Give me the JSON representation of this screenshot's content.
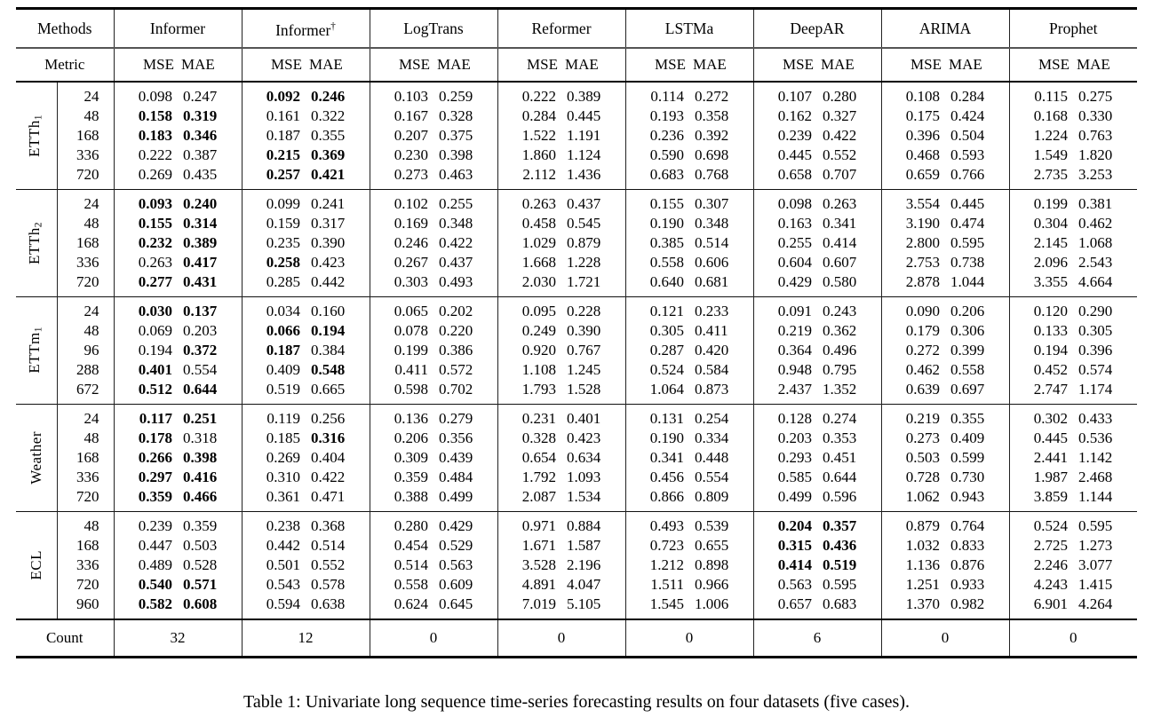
{
  "caption": "Table 1: Univariate long sequence time-series forecasting results on four datasets (five cases).",
  "table": {
    "header": {
      "methods_label": "Methods",
      "metric_label": "Metric",
      "metrics": [
        "MSE",
        "MAE"
      ],
      "methods": [
        {
          "label": "Informer",
          "sup": ""
        },
        {
          "label": "Informer",
          "sup": "†"
        },
        {
          "label": "LogTrans",
          "sup": ""
        },
        {
          "label": "Reformer",
          "sup": ""
        },
        {
          "label": "LSTMa",
          "sup": ""
        },
        {
          "label": "DeepAR",
          "sup": ""
        },
        {
          "label": "ARIMA",
          "sup": ""
        },
        {
          "label": "Prophet",
          "sup": ""
        }
      ]
    },
    "groups": [
      {
        "dataset": "ETTh",
        "sub": "1",
        "rows": [
          {
            "horizon": "24",
            "values": [
              "0.098",
              "0.247",
              "0.092",
              "0.246",
              "0.103",
              "0.259",
              "0.222",
              "0.389",
              "0.114",
              "0.272",
              "0.107",
              "0.280",
              "0.108",
              "0.284",
              "0.115",
              "0.275"
            ],
            "bold": [
              2,
              3
            ]
          },
          {
            "horizon": "48",
            "values": [
              "0.158",
              "0.319",
              "0.161",
              "0.322",
              "0.167",
              "0.328",
              "0.284",
              "0.445",
              "0.193",
              "0.358",
              "0.162",
              "0.327",
              "0.175",
              "0.424",
              "0.168",
              "0.330"
            ],
            "bold": [
              0,
              1
            ]
          },
          {
            "horizon": "168",
            "values": [
              "0.183",
              "0.346",
              "0.187",
              "0.355",
              "0.207",
              "0.375",
              "1.522",
              "1.191",
              "0.236",
              "0.392",
              "0.239",
              "0.422",
              "0.396",
              "0.504",
              "1.224",
              "0.763"
            ],
            "bold": [
              0,
              1
            ]
          },
          {
            "horizon": "336",
            "values": [
              "0.222",
              "0.387",
              "0.215",
              "0.369",
              "0.230",
              "0.398",
              "1.860",
              "1.124",
              "0.590",
              "0.698",
              "0.445",
              "0.552",
              "0.468",
              "0.593",
              "1.549",
              "1.820"
            ],
            "bold": [
              2,
              3
            ]
          },
          {
            "horizon": "720",
            "values": [
              "0.269",
              "0.435",
              "0.257",
              "0.421",
              "0.273",
              "0.463",
              "2.112",
              "1.436",
              "0.683",
              "0.768",
              "0.658",
              "0.707",
              "0.659",
              "0.766",
              "2.735",
              "3.253"
            ],
            "bold": [
              2,
              3
            ]
          }
        ]
      },
      {
        "dataset": "ETTh",
        "sub": "2",
        "rows": [
          {
            "horizon": "24",
            "values": [
              "0.093",
              "0.240",
              "0.099",
              "0.241",
              "0.102",
              "0.255",
              "0.263",
              "0.437",
              "0.155",
              "0.307",
              "0.098",
              "0.263",
              "3.554",
              "0.445",
              "0.199",
              "0.381"
            ],
            "bold": [
              0,
              1
            ]
          },
          {
            "horizon": "48",
            "values": [
              "0.155",
              "0.314",
              "0.159",
              "0.317",
              "0.169",
              "0.348",
              "0.458",
              "0.545",
              "0.190",
              "0.348",
              "0.163",
              "0.341",
              "3.190",
              "0.474",
              "0.304",
              "0.462"
            ],
            "bold": [
              0,
              1
            ]
          },
          {
            "horizon": "168",
            "values": [
              "0.232",
              "0.389",
              "0.235",
              "0.390",
              "0.246",
              "0.422",
              "1.029",
              "0.879",
              "0.385",
              "0.514",
              "0.255",
              "0.414",
              "2.800",
              "0.595",
              "2.145",
              "1.068"
            ],
            "bold": [
              0,
              1
            ]
          },
          {
            "horizon": "336",
            "values": [
              "0.263",
              "0.417",
              "0.258",
              "0.423",
              "0.267",
              "0.437",
              "1.668",
              "1.228",
              "0.558",
              "0.606",
              "0.604",
              "0.607",
              "2.753",
              "0.738",
              "2.096",
              "2.543"
            ],
            "bold": [
              1,
              2
            ]
          },
          {
            "horizon": "720",
            "values": [
              "0.277",
              "0.431",
              "0.285",
              "0.442",
              "0.303",
              "0.493",
              "2.030",
              "1.721",
              "0.640",
              "0.681",
              "0.429",
              "0.580",
              "2.878",
              "1.044",
              "3.355",
              "4.664"
            ],
            "bold": [
              0,
              1
            ]
          }
        ]
      },
      {
        "dataset": "ETTm",
        "sub": "1",
        "rows": [
          {
            "horizon": "24",
            "values": [
              "0.030",
              "0.137",
              "0.034",
              "0.160",
              "0.065",
              "0.202",
              "0.095",
              "0.228",
              "0.121",
              "0.233",
              "0.091",
              "0.243",
              "0.090",
              "0.206",
              "0.120",
              "0.290"
            ],
            "bold": [
              0,
              1
            ]
          },
          {
            "horizon": "48",
            "values": [
              "0.069",
              "0.203",
              "0.066",
              "0.194",
              "0.078",
              "0.220",
              "0.249",
              "0.390",
              "0.305",
              "0.411",
              "0.219",
              "0.362",
              "0.179",
              "0.306",
              "0.133",
              "0.305"
            ],
            "bold": [
              2,
              3
            ]
          },
          {
            "horizon": "96",
            "values": [
              "0.194",
              "0.372",
              "0.187",
              "0.384",
              "0.199",
              "0.386",
              "0.920",
              "0.767",
              "0.287",
              "0.420",
              "0.364",
              "0.496",
              "0.272",
              "0.399",
              "0.194",
              "0.396"
            ],
            "bold": [
              1,
              2
            ]
          },
          {
            "horizon": "288",
            "values": [
              "0.401",
              "0.554",
              "0.409",
              "0.548",
              "0.411",
              "0.572",
              "1.108",
              "1.245",
              "0.524",
              "0.584",
              "0.948",
              "0.795",
              "0.462",
              "0.558",
              "0.452",
              "0.574"
            ],
            "bold": [
              0,
              3
            ]
          },
          {
            "horizon": "672",
            "values": [
              "0.512",
              "0.644",
              "0.519",
              "0.665",
              "0.598",
              "0.702",
              "1.793",
              "1.528",
              "1.064",
              "0.873",
              "2.437",
              "1.352",
              "0.639",
              "0.697",
              "2.747",
              "1.174"
            ],
            "bold": [
              0,
              1
            ]
          }
        ]
      },
      {
        "dataset": "Weather",
        "sub": "",
        "rows": [
          {
            "horizon": "24",
            "values": [
              "0.117",
              "0.251",
              "0.119",
              "0.256",
              "0.136",
              "0.279",
              "0.231",
              "0.401",
              "0.131",
              "0.254",
              "0.128",
              "0.274",
              "0.219",
              "0.355",
              "0.302",
              "0.433"
            ],
            "bold": [
              0,
              1
            ]
          },
          {
            "horizon": "48",
            "values": [
              "0.178",
              "0.318",
              "0.185",
              "0.316",
              "0.206",
              "0.356",
              "0.328",
              "0.423",
              "0.190",
              "0.334",
              "0.203",
              "0.353",
              "0.273",
              "0.409",
              "0.445",
              "0.536"
            ],
            "bold": [
              0,
              3
            ]
          },
          {
            "horizon": "168",
            "values": [
              "0.266",
              "0.398",
              "0.269",
              "0.404",
              "0.309",
              "0.439",
              "0.654",
              "0.634",
              "0.341",
              "0.448",
              "0.293",
              "0.451",
              "0.503",
              "0.599",
              "2.441",
              "1.142"
            ],
            "bold": [
              0,
              1
            ]
          },
          {
            "horizon": "336",
            "values": [
              "0.297",
              "0.416",
              "0.310",
              "0.422",
              "0.359",
              "0.484",
              "1.792",
              "1.093",
              "0.456",
              "0.554",
              "0.585",
              "0.644",
              "0.728",
              "0.730",
              "1.987",
              "2.468"
            ],
            "bold": [
              0,
              1
            ]
          },
          {
            "horizon": "720",
            "values": [
              "0.359",
              "0.466",
              "0.361",
              "0.471",
              "0.388",
              "0.499",
              "2.087",
              "1.534",
              "0.866",
              "0.809",
              "0.499",
              "0.596",
              "1.062",
              "0.943",
              "3.859",
              "1.144"
            ],
            "bold": [
              0,
              1
            ]
          }
        ]
      },
      {
        "dataset": "ECL",
        "sub": "",
        "rows": [
          {
            "horizon": "48",
            "values": [
              "0.239",
              "0.359",
              "0.238",
              "0.368",
              "0.280",
              "0.429",
              "0.971",
              "0.884",
              "0.493",
              "0.539",
              "0.204",
              "0.357",
              "0.879",
              "0.764",
              "0.524",
              "0.595"
            ],
            "bold": [
              10,
              11
            ]
          },
          {
            "horizon": "168",
            "values": [
              "0.447",
              "0.503",
              "0.442",
              "0.514",
              "0.454",
              "0.529",
              "1.671",
              "1.587",
              "0.723",
              "0.655",
              "0.315",
              "0.436",
              "1.032",
              "0.833",
              "2.725",
              "1.273"
            ],
            "bold": [
              10,
              11
            ]
          },
          {
            "horizon": "336",
            "values": [
              "0.489",
              "0.528",
              "0.501",
              "0.552",
              "0.514",
              "0.563",
              "3.528",
              "2.196",
              "1.212",
              "0.898",
              "0.414",
              "0.519",
              "1.136",
              "0.876",
              "2.246",
              "3.077"
            ],
            "bold": [
              10,
              11
            ]
          },
          {
            "horizon": "720",
            "values": [
              "0.540",
              "0.571",
              "0.543",
              "0.578",
              "0.558",
              "0.609",
              "4.891",
              "4.047",
              "1.511",
              "0.966",
              "0.563",
              "0.595",
              "1.251",
              "0.933",
              "4.243",
              "1.415"
            ],
            "bold": [
              0,
              1
            ]
          },
          {
            "horizon": "960",
            "values": [
              "0.582",
              "0.608",
              "0.594",
              "0.638",
              "0.624",
              "0.645",
              "7.019",
              "5.105",
              "1.545",
              "1.006",
              "0.657",
              "0.683",
              "1.370",
              "0.982",
              "6.901",
              "4.264"
            ],
            "bold": [
              0,
              1
            ]
          }
        ]
      }
    ],
    "count": {
      "label": "Count",
      "values": [
        "32",
        "12",
        "0",
        "0",
        "0",
        "6",
        "0",
        "0"
      ]
    }
  }
}
